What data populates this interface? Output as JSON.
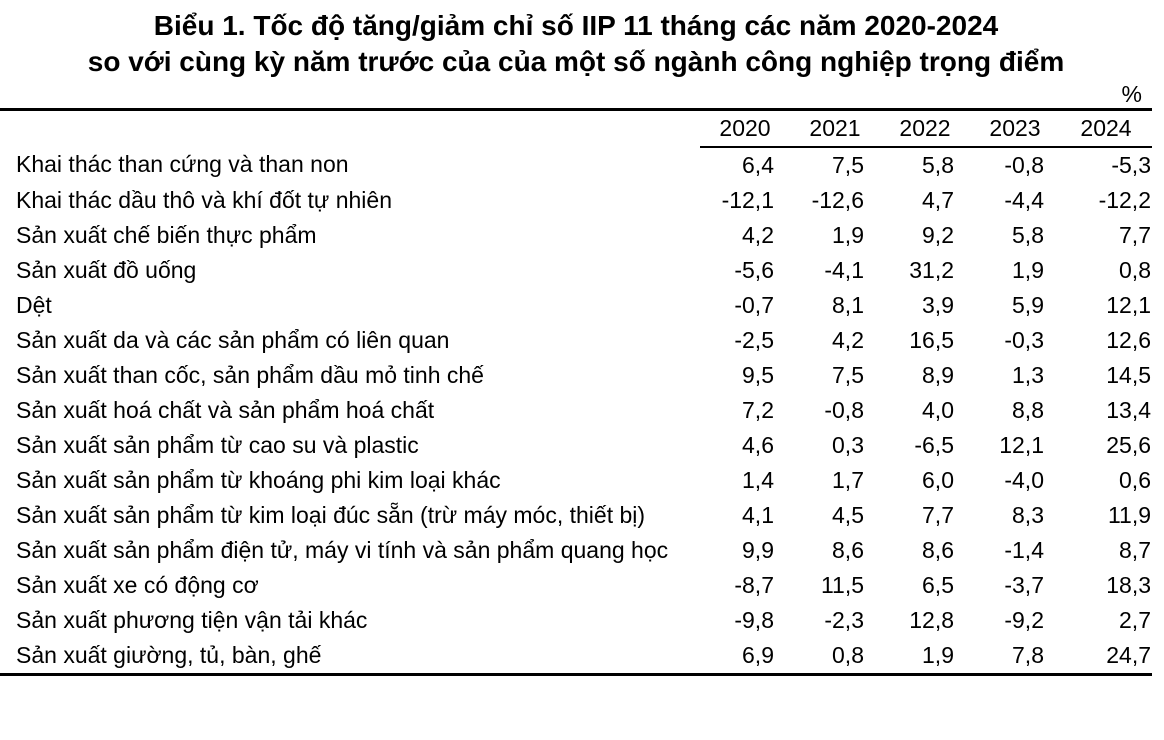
{
  "title": {
    "line1": "Biểu 1. Tốc độ tăng/giảm chỉ số IIP 11 tháng các năm 2020-2024",
    "line2": "so với cùng kỳ năm trước của của một số ngành công nghiệp trọng điểm"
  },
  "unit_label": "%",
  "table": {
    "columns": [
      "2020",
      "2021",
      "2022",
      "2023",
      "2024"
    ],
    "rows": [
      {
        "label": "Khai thác than cứng và than non",
        "values": [
          "6,4",
          "7,5",
          "5,8",
          "-0,8",
          "-5,3"
        ]
      },
      {
        "label": "Khai thác dầu thô và khí đốt tự nhiên",
        "values": [
          "-12,1",
          "-12,6",
          "4,7",
          "-4,4",
          "-12,2"
        ]
      },
      {
        "label": "Sản xuất chế biến thực phẩm",
        "values": [
          "4,2",
          "1,9",
          "9,2",
          "5,8",
          "7,7"
        ]
      },
      {
        "label": "Sản xuất đồ uống",
        "values": [
          "-5,6",
          "-4,1",
          "31,2",
          "1,9",
          "0,8"
        ]
      },
      {
        "label": "Dệt",
        "values": [
          "-0,7",
          "8,1",
          "3,9",
          "5,9",
          "12,1"
        ]
      },
      {
        "label": "Sản xuất da và các sản phẩm có liên quan",
        "values": [
          "-2,5",
          "4,2",
          "16,5",
          "-0,3",
          "12,6"
        ]
      },
      {
        "label": "Sản xuất than cốc, sản phẩm dầu mỏ tinh chế",
        "values": [
          "9,5",
          "7,5",
          "8,9",
          "1,3",
          "14,5"
        ]
      },
      {
        "label": "Sản xuất hoá chất và sản phẩm hoá chất",
        "values": [
          "7,2",
          "-0,8",
          "4,0",
          "8,8",
          "13,4"
        ]
      },
      {
        "label": "Sản xuất sản phẩm từ cao su và plastic",
        "values": [
          "4,6",
          "0,3",
          "-6,5",
          "12,1",
          "25,6"
        ]
      },
      {
        "label": "Sản xuất sản phẩm từ khoáng phi kim loại khác",
        "values": [
          "1,4",
          "1,7",
          "6,0",
          "-4,0",
          "0,6"
        ]
      },
      {
        "label": "Sản xuất sản phẩm từ kim loại đúc sẵn (trừ máy móc, thiết bị)",
        "values": [
          "4,1",
          "4,5",
          "7,7",
          "8,3",
          "11,9"
        ]
      },
      {
        "label": "Sản xuất sản phẩm điện tử, máy vi tính và sản phẩm quang học",
        "values": [
          "9,9",
          "8,6",
          "8,6",
          "-1,4",
          "8,7"
        ]
      },
      {
        "label": "Sản xuất xe có động cơ",
        "values": [
          "-8,7",
          "11,5",
          "6,5",
          "-3,7",
          "18,3"
        ]
      },
      {
        "label": "Sản xuất phương tiện vận tải khác",
        "values": [
          "-9,8",
          "-2,3",
          "12,8",
          "-9,2",
          "2,7"
        ]
      },
      {
        "label": "Sản xuất giường, tủ, bàn, ghế",
        "values": [
          "6,9",
          "0,8",
          "1,9",
          "7,8",
          "24,7"
        ]
      }
    ]
  },
  "chart_data": {
    "type": "table",
    "title": "Biểu 1. Tốc độ tăng/giảm chỉ số IIP 11 tháng các năm 2020-2024 so với cùng kỳ năm trước của của một số ngành công nghiệp trọng điểm",
    "unit": "%",
    "columns": [
      2020,
      2021,
      2022,
      2023,
      2024
    ],
    "series": [
      {
        "name": "Khai thác than cứng và than non",
        "values": [
          6.4,
          7.5,
          5.8,
          -0.8,
          -5.3
        ]
      },
      {
        "name": "Khai thác dầu thô và khí đốt tự nhiên",
        "values": [
          -12.1,
          -12.6,
          4.7,
          -4.4,
          -12.2
        ]
      },
      {
        "name": "Sản xuất chế biến thực phẩm",
        "values": [
          4.2,
          1.9,
          9.2,
          5.8,
          7.7
        ]
      },
      {
        "name": "Sản xuất đồ uống",
        "values": [
          -5.6,
          -4.1,
          31.2,
          1.9,
          0.8
        ]
      },
      {
        "name": "Dệt",
        "values": [
          -0.7,
          8.1,
          3.9,
          5.9,
          12.1
        ]
      },
      {
        "name": "Sản xuất da và các sản phẩm có liên quan",
        "values": [
          -2.5,
          4.2,
          16.5,
          -0.3,
          12.6
        ]
      },
      {
        "name": "Sản xuất than cốc, sản phẩm dầu mỏ tinh chế",
        "values": [
          9.5,
          7.5,
          8.9,
          1.3,
          14.5
        ]
      },
      {
        "name": "Sản xuất hoá chất và sản phẩm hoá chất",
        "values": [
          7.2,
          -0.8,
          4.0,
          8.8,
          13.4
        ]
      },
      {
        "name": "Sản xuất sản phẩm từ cao su và plastic",
        "values": [
          4.6,
          0.3,
          -6.5,
          12.1,
          25.6
        ]
      },
      {
        "name": "Sản xuất sản phẩm từ khoáng phi kim loại khác",
        "values": [
          1.4,
          1.7,
          6.0,
          -4.0,
          0.6
        ]
      },
      {
        "name": "Sản xuất sản phẩm từ kim loại đúc sẵn (trừ máy móc, thiết bị)",
        "values": [
          4.1,
          4.5,
          7.7,
          8.3,
          11.9
        ]
      },
      {
        "name": "Sản xuất sản phẩm điện tử, máy vi tính và sản phẩm quang học",
        "values": [
          9.9,
          8.6,
          8.6,
          -1.4,
          8.7
        ]
      },
      {
        "name": "Sản xuất xe có động cơ",
        "values": [
          -8.7,
          11.5,
          6.5,
          -3.7,
          18.3
        ]
      },
      {
        "name": "Sản xuất phương tiện vận tải khác",
        "values": [
          -9.8,
          -2.3,
          12.8,
          -9.2,
          2.7
        ]
      },
      {
        "name": "Sản xuất giường, tủ, bàn, ghế",
        "values": [
          6.9,
          0.8,
          1.9,
          7.8,
          24.7
        ]
      }
    ]
  }
}
